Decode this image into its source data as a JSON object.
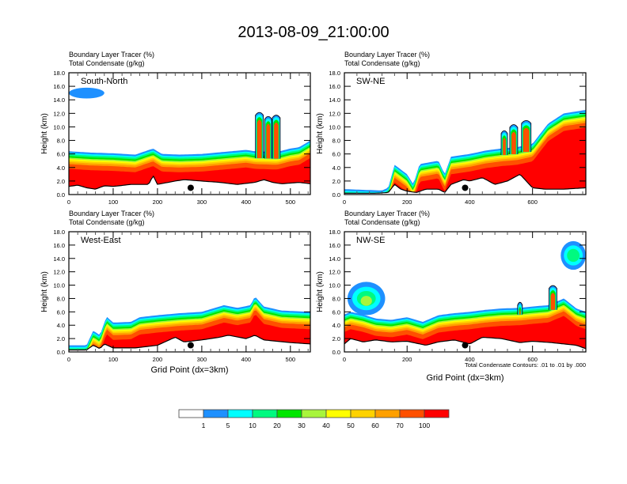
{
  "title": "2013-08-09_21:00:00",
  "colors": {
    "levels": [
      "#ffffff",
      "#1e90ff",
      "#00ffff",
      "#00fa80",
      "#00e600",
      "#a8f53c",
      "#ffff00",
      "#ffd200",
      "#ffa000",
      "#ff5000",
      "#ff0000"
    ],
    "contour": "#000000",
    "terrain": "#ffffff",
    "marker": "#000000"
  },
  "chart_data": [
    {
      "type": "heatmap",
      "panel": "South-North",
      "title_lines": [
        "Boundary Layer Tracer   (%)",
        "Total Condensate   (g/kg)"
      ],
      "ylabel": "Height (km)",
      "xlabel": "",
      "xlim": [
        0,
        545
      ],
      "ylim": [
        0,
        18
      ],
      "xticks": [
        0,
        100,
        200,
        300,
        400,
        500
      ],
      "yticks": [
        "0.0",
        "2.0",
        "4.0",
        "6.0",
        "8.0",
        "10.0",
        "12.0",
        "14.0",
        "16.0",
        "18.0"
      ],
      "marker": {
        "x": 275,
        "y": 1.0
      },
      "terrain": [
        [
          0,
          1.2
        ],
        [
          20,
          1.4
        ],
        [
          40,
          1.0
        ],
        [
          60,
          0.8
        ],
        [
          80,
          1.3
        ],
        [
          100,
          1.2
        ],
        [
          140,
          1.5
        ],
        [
          180,
          1.5
        ],
        [
          190,
          2.8
        ],
        [
          200,
          1.5
        ],
        [
          240,
          2.0
        ],
        [
          260,
          2.2
        ],
        [
          300,
          2.0
        ],
        [
          340,
          1.8
        ],
        [
          380,
          1.5
        ],
        [
          420,
          1.8
        ],
        [
          440,
          2.2
        ],
        [
          460,
          1.8
        ],
        [
          480,
          1.6
        ],
        [
          520,
          1.8
        ],
        [
          545,
          1.6
        ]
      ],
      "pbl_top": [
        [
          0,
          6.4
        ],
        [
          50,
          6.2
        ],
        [
          100,
          6.1
        ],
        [
          150,
          5.9
        ],
        [
          190,
          6.8
        ],
        [
          210,
          6.0
        ],
        [
          250,
          5.9
        ],
        [
          300,
          6.0
        ],
        [
          350,
          6.3
        ],
        [
          400,
          6.6
        ],
        [
          420,
          6.4
        ],
        [
          470,
          6.3
        ],
        [
          500,
          6.8
        ],
        [
          520,
          7.0
        ],
        [
          545,
          8.0
        ]
      ],
      "convection": [
        {
          "x": 430,
          "top": 12.2,
          "w": 10
        },
        {
          "x": 450,
          "top": 11.6,
          "w": 9
        },
        {
          "x": 468,
          "top": 11.8,
          "w": 10
        }
      ],
      "upper_cloud": {
        "x0": 0,
        "x1": 80,
        "y0": 14.2,
        "y1": 15.8
      }
    },
    {
      "type": "heatmap",
      "panel": "SW-NE",
      "title_lines": [
        "Boundary Layer Tracer   (%)",
        "Total Condensate   (g/kg)"
      ],
      "ylabel": "Height (km)",
      "xlabel": "",
      "xlim": [
        0,
        770
      ],
      "ylim": [
        0,
        18
      ],
      "xticks": [
        0,
        200,
        400,
        600
      ],
      "yticks": [
        "0.0",
        "2.0",
        "4.0",
        "6.0",
        "8.0",
        "10.0",
        "12.0",
        "14.0",
        "16.0",
        "18.0"
      ],
      "marker": {
        "x": 385,
        "y": 1.0
      },
      "terrain": [
        [
          0,
          0.2
        ],
        [
          100,
          0.2
        ],
        [
          140,
          0.3
        ],
        [
          160,
          1.5
        ],
        [
          180,
          0.8
        ],
        [
          200,
          0.5
        ],
        [
          230,
          0.3
        ],
        [
          260,
          0.8
        ],
        [
          300,
          0.8
        ],
        [
          320,
          0.3
        ],
        [
          340,
          1.5
        ],
        [
          380,
          2.2
        ],
        [
          400,
          2.0
        ],
        [
          440,
          2.5
        ],
        [
          480,
          1.5
        ],
        [
          520,
          2.0
        ],
        [
          560,
          3.0
        ],
        [
          600,
          1.0
        ],
        [
          640,
          0.8
        ],
        [
          700,
          0.8
        ],
        [
          770,
          1.0
        ]
      ],
      "pbl_top": [
        [
          0,
          0.8
        ],
        [
          120,
          0.6
        ],
        [
          140,
          1.0
        ],
        [
          160,
          4.4
        ],
        [
          200,
          3.0
        ],
        [
          220,
          1.5
        ],
        [
          240,
          4.5
        ],
        [
          300,
          5.0
        ],
        [
          320,
          3.0
        ],
        [
          340,
          5.6
        ],
        [
          400,
          6.0
        ],
        [
          450,
          6.5
        ],
        [
          500,
          6.8
        ],
        [
          550,
          7.0
        ],
        [
          600,
          7.5
        ],
        [
          650,
          10.5
        ],
        [
          700,
          12.0
        ],
        [
          770,
          12.5
        ]
      ],
      "convection": [
        {
          "x": 510,
          "top": 9.5,
          "w": 8
        },
        {
          "x": 540,
          "top": 10.4,
          "w": 10
        },
        {
          "x": 580,
          "top": 11.0,
          "w": 12
        }
      ],
      "upper_cloud": null
    },
    {
      "type": "heatmap",
      "panel": "West-East",
      "title_lines": [
        "Boundary Layer Tracer   (%)",
        "Total Condensate   (g/kg)"
      ],
      "ylabel": "Height (km)",
      "xlabel": "Grid Point (dx=3km)",
      "xlim": [
        0,
        545
      ],
      "ylim": [
        0,
        18
      ],
      "xticks": [
        0,
        100,
        200,
        300,
        400,
        500
      ],
      "yticks": [
        "0.0",
        "2.0",
        "4.0",
        "6.0",
        "8.0",
        "10.0",
        "12.0",
        "14.0",
        "16.0",
        "18.0"
      ],
      "marker": {
        "x": 275,
        "y": 1.0
      },
      "terrain": [
        [
          0,
          0.3
        ],
        [
          40,
          0.3
        ],
        [
          55,
          1.0
        ],
        [
          70,
          0.5
        ],
        [
          80,
          1.2
        ],
        [
          100,
          0.6
        ],
        [
          150,
          0.6
        ],
        [
          200,
          1.0
        ],
        [
          240,
          2.2
        ],
        [
          260,
          1.5
        ],
        [
          300,
          1.8
        ],
        [
          340,
          2.2
        ],
        [
          360,
          2.5
        ],
        [
          400,
          2.0
        ],
        [
          420,
          2.5
        ],
        [
          440,
          1.8
        ],
        [
          500,
          1.4
        ],
        [
          545,
          1.2
        ]
      ],
      "pbl_top": [
        [
          0,
          1.0
        ],
        [
          40,
          1.0
        ],
        [
          55,
          3.2
        ],
        [
          70,
          2.5
        ],
        [
          85,
          5.3
        ],
        [
          100,
          4.4
        ],
        [
          140,
          4.5
        ],
        [
          160,
          5.2
        ],
        [
          200,
          5.5
        ],
        [
          250,
          5.8
        ],
        [
          300,
          6.0
        ],
        [
          350,
          7.0
        ],
        [
          380,
          6.6
        ],
        [
          410,
          7.0
        ],
        [
          420,
          8.3
        ],
        [
          440,
          6.8
        ],
        [
          480,
          6.2
        ],
        [
          545,
          6.0
        ]
      ],
      "convection": [],
      "upper_cloud": null
    },
    {
      "type": "heatmap",
      "panel": "NW-SE",
      "title_lines": [
        "Boundary Layer Tracer   (%)",
        "Total Condensate   (g/kg)"
      ],
      "ylabel": "Height (km)",
      "xlabel": "Grid Point (dx=3km)",
      "xlim": [
        0,
        770
      ],
      "ylim": [
        0,
        18
      ],
      "xticks": [
        0,
        200,
        400,
        600
      ],
      "yticks": [
        "0.0",
        "2.0",
        "4.0",
        "6.0",
        "8.0",
        "10.0",
        "12.0",
        "14.0",
        "16.0",
        "18.0"
      ],
      "marker": {
        "x": 385,
        "y": 1.0
      },
      "annotation": "Total Condensate Contours: .01 to .01 by .000",
      "terrain": [
        [
          0,
          1.2
        ],
        [
          20,
          2.0
        ],
        [
          60,
          1.5
        ],
        [
          100,
          1.8
        ],
        [
          150,
          1.5
        ],
        [
          200,
          1.6
        ],
        [
          260,
          1.0
        ],
        [
          300,
          1.5
        ],
        [
          350,
          1.8
        ],
        [
          400,
          1.2
        ],
        [
          440,
          2.2
        ],
        [
          500,
          2.0
        ],
        [
          560,
          1.4
        ],
        [
          600,
          1.6
        ],
        [
          660,
          1.4
        ],
        [
          700,
          1.2
        ],
        [
          740,
          1.0
        ],
        [
          770,
          0.5
        ]
      ],
      "pbl_top": [
        [
          0,
          5.6
        ],
        [
          20,
          6.0
        ],
        [
          60,
          5.6
        ],
        [
          100,
          5.0
        ],
        [
          150,
          4.8
        ],
        [
          200,
          5.2
        ],
        [
          250,
          4.5
        ],
        [
          300,
          5.5
        ],
        [
          350,
          5.8
        ],
        [
          400,
          6.0
        ],
        [
          450,
          6.3
        ],
        [
          500,
          6.5
        ],
        [
          560,
          6.6
        ],
        [
          600,
          6.8
        ],
        [
          650,
          7.0
        ],
        [
          700,
          8.0
        ],
        [
          740,
          6.5
        ],
        [
          770,
          6.0
        ]
      ],
      "convection": [
        {
          "x": 560,
          "top": 7.5,
          "w": 6
        },
        {
          "x": 665,
          "top": 10.0,
          "w": 10
        }
      ],
      "upper_cloud": {
        "x0": 690,
        "x1": 770,
        "y0": 12.3,
        "y1": 16.6
      },
      "left_cloud": {
        "x0": 10,
        "x1": 130,
        "y0": 5.5,
        "y1": 10.5
      }
    }
  ],
  "colorbar": {
    "labels": [
      "1",
      "5",
      "10",
      "20",
      "30",
      "40",
      "50",
      "60",
      "70",
      "100"
    ]
  }
}
